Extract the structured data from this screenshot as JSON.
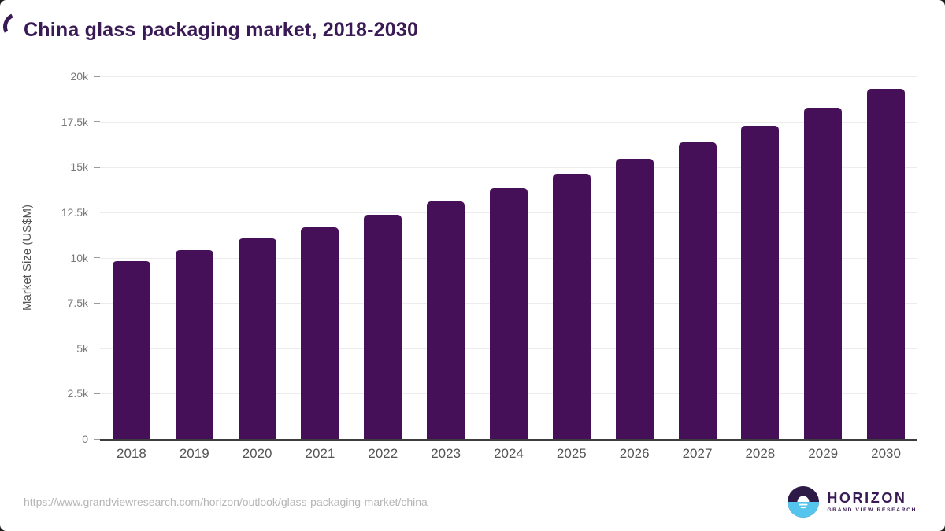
{
  "page": {
    "title": "China glass packaging market, 2018-2030"
  },
  "chart_data": {
    "type": "bar",
    "title": "China glass packaging market, 2018-2030",
    "xlabel": "",
    "ylabel": "Market Size (US$M)",
    "categories": [
      "2018",
      "2019",
      "2020",
      "2021",
      "2022",
      "2023",
      "2024",
      "2025",
      "2026",
      "2027",
      "2028",
      "2029",
      "2030"
    ],
    "values": [
      9800,
      10400,
      11050,
      11650,
      12350,
      13100,
      13850,
      14600,
      15450,
      16350,
      17250,
      18250,
      19300
    ],
    "ylim": [
      0,
      20000
    ],
    "ytick_values": [
      0,
      2500,
      5000,
      7500,
      10000,
      12500,
      15000,
      17500,
      20000
    ],
    "ytick_labels": [
      "0",
      "2.5k",
      "5k",
      "7.5k",
      "10k",
      "12.5k",
      "15k",
      "17.5k",
      "20k"
    ],
    "grid": true,
    "legend_position": "none",
    "bar_color": "#461059"
  },
  "footer": {
    "source_url": "https://www.grandviewresearch.com/horizon/outlook/glass-packaging-market/china",
    "logo": {
      "name": "HORIZON",
      "subtitle": "GRAND VIEW RESEARCH"
    }
  },
  "colors": {
    "title": "#3a1a55",
    "bar": "#461059",
    "axis_line": "#3d3d3d",
    "gridline": "#ececec",
    "y_tick_label": "#7a7a7a",
    "x_tick_label": "#545454",
    "source_url": "#b5b5b5",
    "logo_circle_top": "#2e1a47",
    "logo_circle_bottom": "#56c5ee"
  }
}
